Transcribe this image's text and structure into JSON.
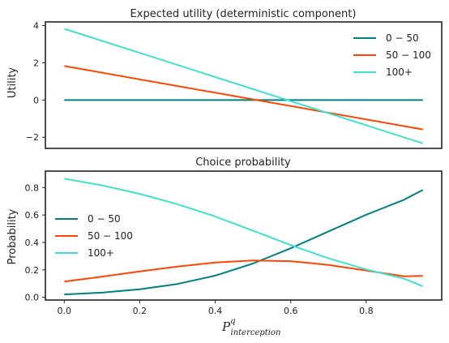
{
  "chart_data": [
    {
      "type": "line",
      "title": "Expected utility (deterministic component)",
      "xlabel": "",
      "ylabel": "Utility",
      "xlim": [
        -0.05,
        1.0
      ],
      "ylim": [
        -2.6,
        4.2
      ],
      "yticks": [
        4,
        2,
        0,
        -2
      ],
      "ytick_labels": [
        "4",
        "2",
        "0",
        "−2"
      ],
      "legend_position": "top-right",
      "x": [
        0.0,
        0.95
      ],
      "series": [
        {
          "name": "0 − 50",
          "color": "#008080",
          "values": [
            0.0,
            0.0
          ]
        },
        {
          "name": "50 − 100",
          "color": "#ff4500",
          "values": [
            1.83,
            -1.58
          ]
        },
        {
          "name": "100+",
          "color": "#40e0d0",
          "values": [
            3.83,
            -2.33
          ]
        }
      ]
    },
    {
      "type": "line",
      "title": "Choice probability",
      "xlabel": "P",
      "xlabel_sup": "q",
      "xlabel_sub": "interception",
      "ylabel": "Probability",
      "xlim": [
        -0.05,
        1.0
      ],
      "ylim": [
        -0.02,
        0.92
      ],
      "yticks": [
        0.0,
        0.2,
        0.4,
        0.6,
        0.8
      ],
      "ytick_labels": [
        "0.0",
        "0.2",
        "0.4",
        "0.6",
        "0.8"
      ],
      "xticks": [
        0.0,
        0.2,
        0.4,
        0.6,
        0.8
      ],
      "xtick_labels": [
        "0.0",
        "0.2",
        "0.4",
        "0.6",
        "0.8"
      ],
      "legend_position": "center-left",
      "x": [
        0.0,
        0.1,
        0.2,
        0.3,
        0.4,
        0.5,
        0.6,
        0.7,
        0.8,
        0.9,
        0.95
      ],
      "series": [
        {
          "name": "0 − 50",
          "color": "#008080",
          "values": [
            0.021,
            0.034,
            0.058,
            0.097,
            0.158,
            0.246,
            0.357,
            0.48,
            0.602,
            0.711,
            0.782
          ]
        },
        {
          "name": "50 − 100",
          "color": "#ff4500",
          "values": [
            0.114,
            0.15,
            0.188,
            0.224,
            0.253,
            0.268,
            0.263,
            0.236,
            0.195,
            0.153,
            0.156
          ]
        },
        {
          "name": "100+",
          "color": "#40e0d0",
          "values": [
            0.865,
            0.816,
            0.754,
            0.679,
            0.589,
            0.486,
            0.38,
            0.284,
            0.203,
            0.136,
            0.08
          ]
        }
      ]
    }
  ]
}
